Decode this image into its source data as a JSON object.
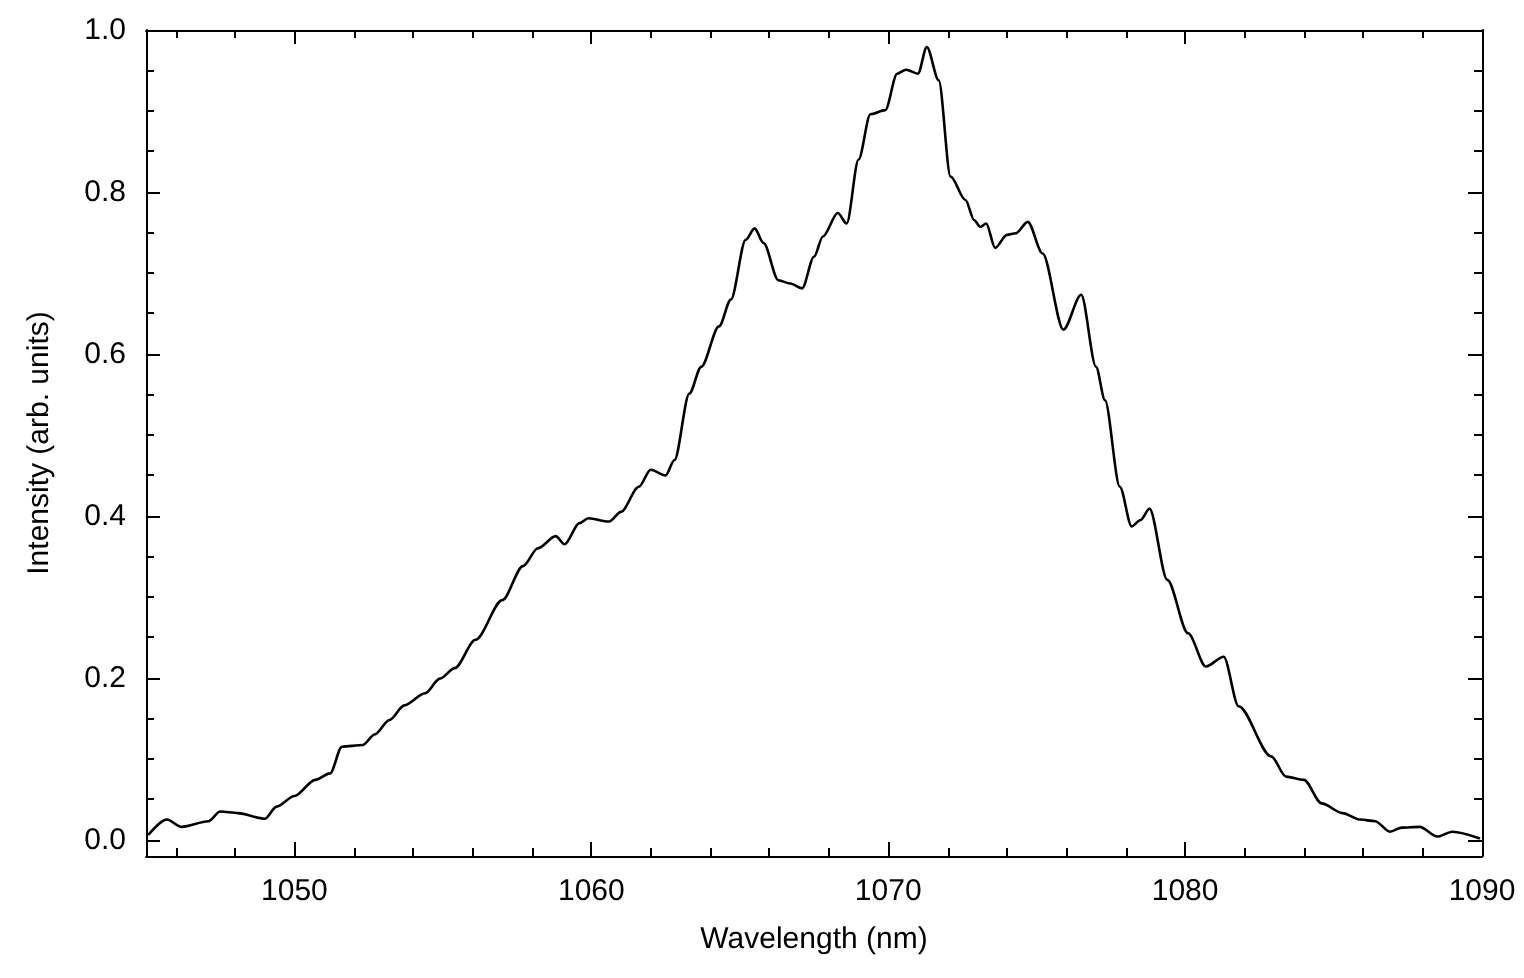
{
  "chart_data": {
    "type": "line",
    "xlabel": "Wavelength (nm)",
    "ylabel": "Intensity (arb. units)",
    "xlim": [
      1045,
      1090
    ],
    "xticks": [
      1050,
      1060,
      1070,
      1080,
      1090
    ],
    "ylim": [
      -0.02,
      1.0
    ],
    "yticks": [
      {
        "value": 0,
        "label": "0.0"
      },
      0.2,
      0.4,
      0.6,
      0.8,
      {
        "value": 1,
        "label": "1.0"
      }
    ],
    "marker": "none",
    "line_style": "solid",
    "series": [
      {
        "color": "#000000",
        "x": [
          1045.1,
          1045.7,
          1046.2,
          1047.1,
          1047.5,
          1048.1,
          1049.0,
          1049.4,
          1050.0,
          1050.7,
          1051.2,
          1051.6,
          1052.3,
          1052.7,
          1053.2,
          1053.7,
          1054.4,
          1054.9,
          1055.4,
          1056.1,
          1057.0,
          1057.7,
          1058.2,
          1058.8,
          1059.1,
          1059.6,
          1059.9,
          1060.6,
          1061.0,
          1061.6,
          1062.0,
          1062.5,
          1062.8,
          1063.3,
          1063.7,
          1064.3,
          1064.7,
          1065.2,
          1065.5,
          1065.8,
          1066.3,
          1066.7,
          1067.1,
          1067.5,
          1067.8,
          1068.3,
          1068.6,
          1069.0,
          1069.4,
          1069.9,
          1070.3,
          1070.6,
          1071.0,
          1071.3,
          1071.7,
          1072.1,
          1072.6,
          1072.9,
          1073.1,
          1073.3,
          1073.6,
          1074.0,
          1074.3,
          1074.7,
          1075.2,
          1075.9,
          1076.5,
          1077.0,
          1077.3,
          1077.8,
          1078.2,
          1078.5,
          1078.8,
          1079.4,
          1080.1,
          1080.7,
          1081.3,
          1081.8,
          1082.9,
          1083.4,
          1084.0,
          1084.6,
          1085.3,
          1085.9,
          1086.4,
          1086.9,
          1087.3,
          1087.9,
          1088.5,
          1089.0,
          1089.9
        ],
        "values": [
          0.007,
          0.025,
          0.016,
          0.023,
          0.035,
          0.033,
          0.026,
          0.041,
          0.054,
          0.074,
          0.082,
          0.115,
          0.117,
          0.13,
          0.148,
          0.166,
          0.181,
          0.199,
          0.212,
          0.247,
          0.296,
          0.338,
          0.36,
          0.375,
          0.365,
          0.391,
          0.397,
          0.393,
          0.405,
          0.436,
          0.457,
          0.45,
          0.469,
          0.551,
          0.584,
          0.634,
          0.667,
          0.741,
          0.755,
          0.737,
          0.691,
          0.687,
          0.681,
          0.72,
          0.745,
          0.774,
          0.761,
          0.84,
          0.896,
          0.901,
          0.946,
          0.951,
          0.946,
          0.979,
          0.938,
          0.819,
          0.79,
          0.765,
          0.757,
          0.761,
          0.731,
          0.747,
          0.749,
          0.763,
          0.724,
          0.63,
          0.673,
          0.584,
          0.543,
          0.436,
          0.387,
          0.395,
          0.409,
          0.321,
          0.255,
          0.214,
          0.226,
          0.165,
          0.103,
          0.078,
          0.074,
          0.045,
          0.033,
          0.025,
          0.023,
          0.01,
          0.015,
          0.016,
          0.004,
          0.01,
          0.002
        ]
      }
    ]
  }
}
